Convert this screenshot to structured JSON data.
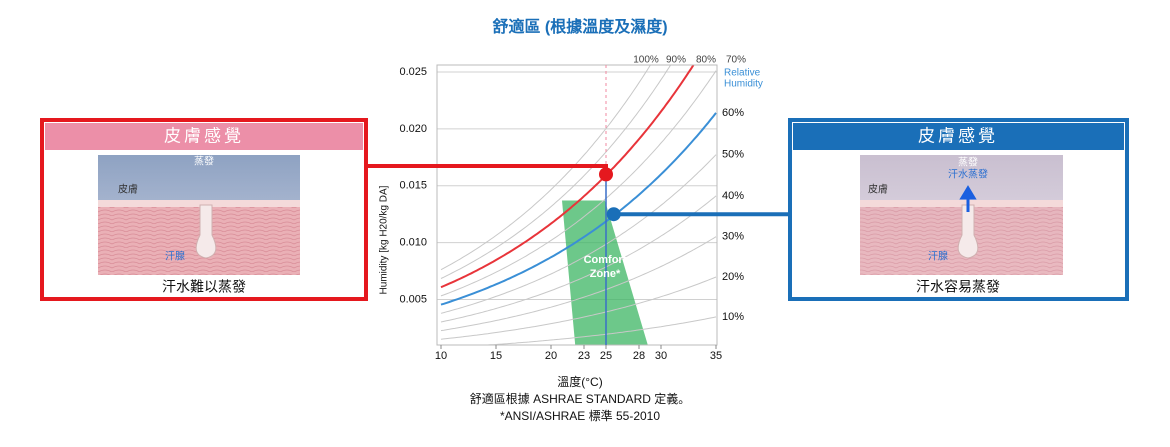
{
  "chart_data": {
    "type": "psychrometric",
    "title": "舒適區 (根據溫度及濕度)",
    "xlabel": "溫度(°C)",
    "ylabel": "Humidity [kg H20/kg DA]",
    "notes": [
      "舒適區根據 ASHRAE STANDARD 定義。",
      "*ANSI/ASHRAE 標準 55-2010"
    ],
    "xlim": [
      10,
      35
    ],
    "xticks": [
      10,
      15,
      20,
      23,
      25,
      28,
      30,
      35
    ],
    "ylim": [
      0.001,
      0.025
    ],
    "yticks": [
      {
        "value": 0.005,
        "label": "0.005"
      },
      {
        "value": 0.01,
        "label": "0.010"
      },
      {
        "value": 0.015,
        "label": "0.015"
      },
      {
        "value": 0.02,
        "label": "0.020"
      },
      {
        "value": 0.025,
        "label": "0.025"
      }
    ],
    "grid": true,
    "rh_title": [
      "Relative",
      "Humidity"
    ],
    "rh_ticks": [
      {
        "value": 100,
        "label": "100%"
      },
      {
        "value": 90,
        "label": "90%"
      },
      {
        "value": 80,
        "label": "80%"
      },
      {
        "value": 70,
        "label": "70%"
      },
      {
        "value": 60,
        "label": "60%"
      },
      {
        "value": 50,
        "label": "50%"
      },
      {
        "value": 40,
        "label": "40%"
      },
      {
        "value": 30,
        "label": "30%"
      },
      {
        "value": 20,
        "label": "20%"
      },
      {
        "value": 10,
        "label": "10%"
      }
    ],
    "curves": [
      {
        "rh": 80,
        "color": "#e8343a"
      },
      {
        "rh": 60,
        "color": "#3a8fd6"
      }
    ],
    "reference_x": 25,
    "points": [
      {
        "x": 25,
        "y": 0.016,
        "color": "#e5181e"
      },
      {
        "x": 25.7,
        "y": 0.0125,
        "color": "#1a6fb8"
      }
    ],
    "comfort_zone": {
      "label": [
        "Comfort",
        "Zone*"
      ],
      "color": "#3cb563",
      "polygon": [
        [
          21,
          0.0137
        ],
        [
          24.9,
          0.0137
        ],
        [
          28.8,
          0.001
        ],
        [
          22.2,
          0.001
        ]
      ]
    }
  },
  "left_panel": {
    "title": "皮膚感覺",
    "evaporation": "蒸發",
    "skin": "皮膚",
    "gland": "汗腺",
    "caption": "汗水難以蒸發"
  },
  "right_panel": {
    "title": "皮膚感覺",
    "evaporation": "蒸發",
    "sweat_evaporation": "汗水蒸發",
    "skin": "皮膚",
    "gland": "汗腺",
    "caption": "汗水容易蒸發"
  }
}
